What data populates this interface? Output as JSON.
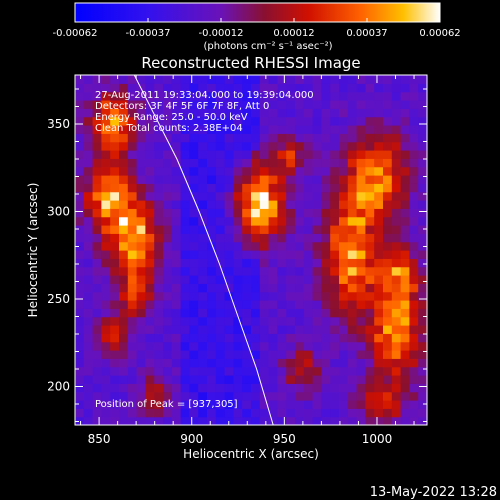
{
  "colorbar": {
    "ticks": [
      "-0.00062",
      "-0.00037",
      "-0.00012",
      "0.00012",
      "0.00037",
      "0.00062"
    ],
    "unit_label": "(photons cm⁻² s⁻¹ asec⁻²)"
  },
  "chart_data": {
    "type": "heatmap",
    "title": "Reconstructed RHESSI Image",
    "xlabel": "Heliocentric X (arcsec)",
    "ylabel": "Heliocentric Y (arcsec)",
    "xlim": [
      837,
      1027
    ],
    "ylim": [
      178,
      378
    ],
    "xticks": [
      850,
      900,
      950,
      1000
    ],
    "yticks": [
      200,
      250,
      300,
      350
    ],
    "colorbar_range": [
      -0.00062,
      0.00062
    ],
    "colormap": "blue-purple-red-yellow-white",
    "annotations": [
      "27-Aug-2011 19:33:04.000 to 19:39:04.000",
      "Detectors: 3F 4F 5F 6F 7F 8F, Att 0",
      "Energy Range: 25.0 - 50.0 keV",
      "Clean     Total counts: 2.38E+04"
    ],
    "peak_label": "Position of Peak = [937,305]",
    "peak": [
      937,
      305
    ],
    "features": [
      {
        "x": 858,
        "y": 350,
        "amp": 0.85,
        "sx": 9,
        "sy": 12
      },
      {
        "x": 855,
        "y": 310,
        "amp": 0.8,
        "sx": 10,
        "sy": 12
      },
      {
        "x": 868,
        "y": 285,
        "amp": 0.9,
        "sx": 10,
        "sy": 14
      },
      {
        "x": 870,
        "y": 255,
        "amp": 0.55,
        "sx": 7,
        "sy": 10
      },
      {
        "x": 858,
        "y": 230,
        "amp": 0.5,
        "sx": 7,
        "sy": 8
      },
      {
        "x": 937,
        "y": 305,
        "amp": 1.0,
        "sx": 9,
        "sy": 15
      },
      {
        "x": 952,
        "y": 332,
        "amp": 0.45,
        "sx": 7,
        "sy": 8
      },
      {
        "x": 1000,
        "y": 320,
        "amp": 0.8,
        "sx": 12,
        "sy": 18
      },
      {
        "x": 985,
        "y": 275,
        "amp": 0.85,
        "sx": 10,
        "sy": 22
      },
      {
        "x": 1010,
        "y": 230,
        "amp": 0.8,
        "sx": 10,
        "sy": 20
      },
      {
        "x": 1012,
        "y": 265,
        "amp": 0.6,
        "sx": 8,
        "sy": 12
      },
      {
        "x": 960,
        "y": 210,
        "amp": 0.45,
        "sx": 7,
        "sy": 9
      },
      {
        "x": 880,
        "y": 195,
        "amp": 0.4,
        "sx": 6,
        "sy": 8
      },
      {
        "x": 1002,
        "y": 190,
        "amp": 0.5,
        "sx": 9,
        "sy": 8
      }
    ],
    "limb_curve": [
      [
        869,
        378
      ],
      [
        880,
        355
      ],
      [
        892,
        330
      ],
      [
        904,
        300
      ],
      [
        915,
        270
      ],
      [
        925,
        240
      ],
      [
        935,
        210
      ],
      [
        944,
        178
      ]
    ]
  },
  "footer": {
    "timestamp": "13-May-2022 13:28"
  }
}
